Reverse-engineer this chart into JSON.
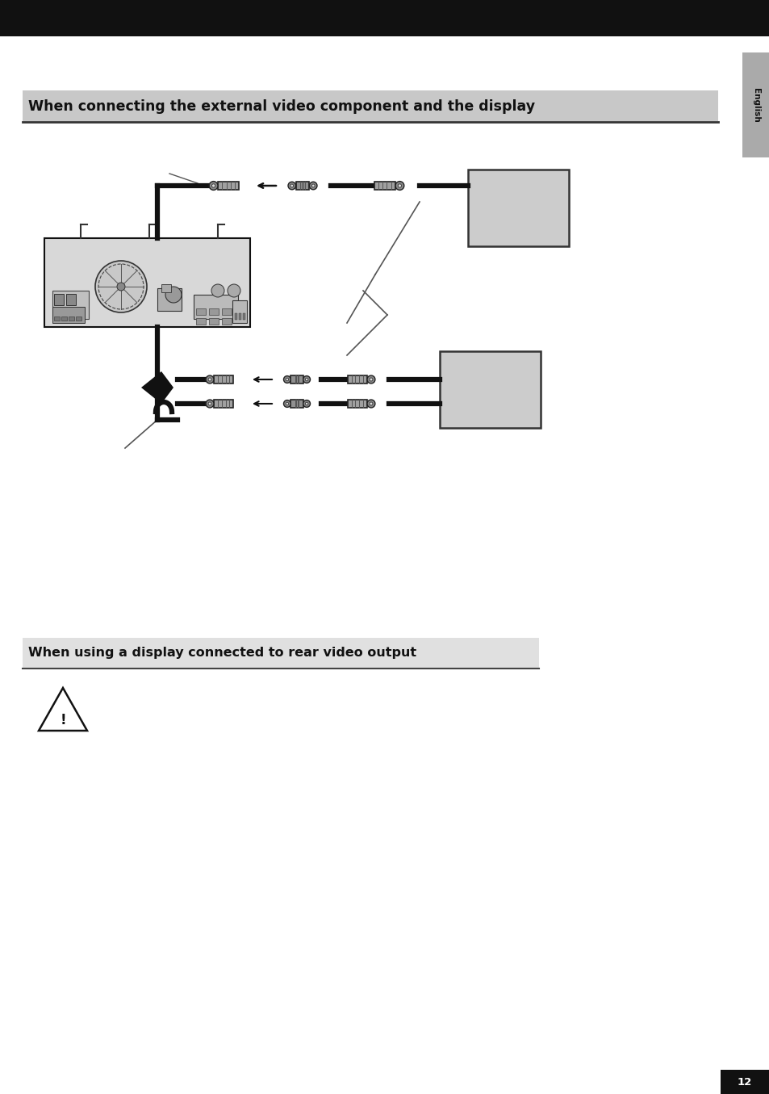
{
  "page_bg": "#ffffff",
  "header_bar_color": "#111111",
  "section1_title": "When connecting the external video component and the display",
  "section2_title": "When using a display connected to rear video output",
  "english_text": "English",
  "page_number": "12",
  "page_num_bg": "#111111"
}
